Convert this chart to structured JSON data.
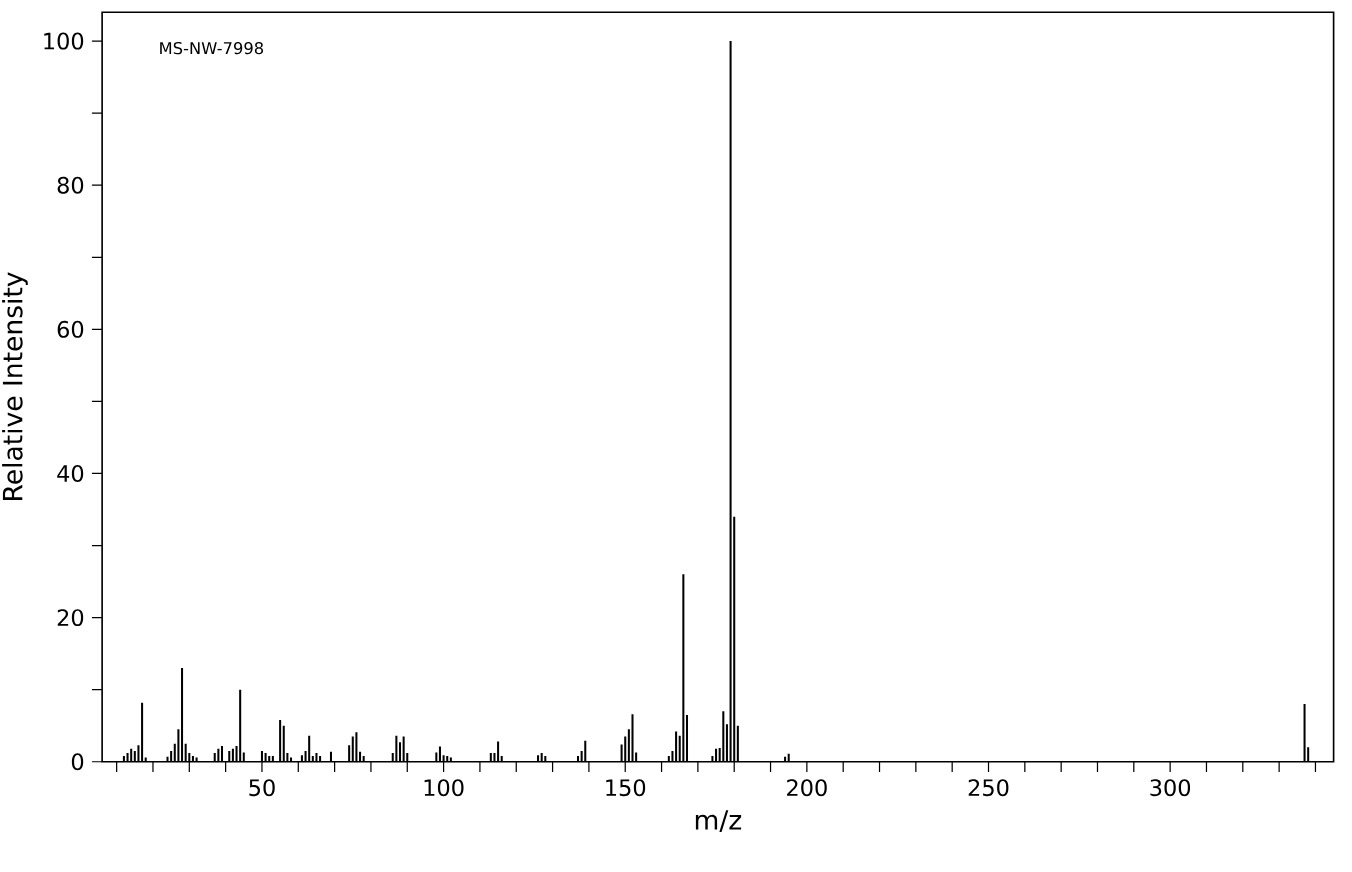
{
  "chart_data": {
    "type": "bar",
    "xlabel": "m/z",
    "ylabel": "Relative Intensity",
    "annotations": [
      "MS-NW-7998"
    ],
    "color": "#000000",
    "x": [
      12,
      13,
      14,
      15,
      16,
      17,
      18,
      24,
      25,
      26,
      27,
      28,
      29,
      30,
      31,
      32,
      37,
      38,
      39,
      41,
      42,
      43,
      44,
      45,
      50,
      51,
      52,
      53,
      55,
      56,
      57,
      58,
      61,
      62,
      63,
      64,
      65,
      66,
      69,
      74,
      75,
      76,
      77,
      78,
      86,
      87,
      88,
      89,
      90,
      98,
      99,
      100,
      101,
      102,
      113,
      114,
      115,
      116,
      126,
      127,
      128,
      137,
      138,
      139,
      149,
      150,
      151,
      152,
      153,
      162,
      163,
      164,
      165,
      166,
      167,
      174,
      175,
      176,
      177,
      178,
      179,
      180,
      181,
      194,
      195,
      337,
      338
    ],
    "values": [
      0.8,
      1.2,
      1.8,
      1.5,
      2.3,
      8.2,
      0.6,
      0.7,
      1.5,
      2.5,
      4.5,
      13,
      2.5,
      1.2,
      0.8,
      0.6,
      1.2,
      1.8,
      2.2,
      1.5,
      1.8,
      2.2,
      10,
      1.3,
      1.5,
      1.2,
      0.8,
      0.8,
      5.8,
      5,
      1.2,
      0.6,
      0.9,
      1.5,
      3.6,
      0.8,
      1.2,
      0.8,
      1.4,
      2.3,
      3.5,
      4.1,
      1.4,
      0.8,
      1.2,
      3.6,
      2.7,
      3.5,
      1.2,
      1.3,
      2.1,
      0.9,
      0.8,
      0.6,
      1.2,
      1.2,
      2.8,
      0.8,
      0.9,
      1.2,
      0.8,
      0.8,
      1.5,
      2.9,
      2.4,
      3.5,
      4.5,
      6.6,
      1.3,
      0.8,
      1.5,
      4.2,
      3.6,
      26,
      6.5,
      0.8,
      1.8,
      1.9,
      7,
      5.2,
      100,
      34,
      5,
      0.7,
      1.1,
      8,
      2
    ],
    "xlim": [
      6,
      345
    ],
    "ylim": [
      0,
      104
    ],
    "xticks": [
      50,
      100,
      150,
      200,
      250,
      300,
      {
        "value": 10,
        "label": null
      },
      {
        "value": 20,
        "label": null
      },
      {
        "value": 30,
        "label": null
      },
      {
        "value": 40,
        "label": null
      },
      {
        "value": 60,
        "label": null
      },
      {
        "value": 70,
        "label": null
      },
      {
        "value": 80,
        "label": null
      },
      {
        "value": 90,
        "label": null
      },
      {
        "value": 110,
        "label": null
      },
      {
        "value": 120,
        "label": null
      },
      {
        "value": 130,
        "label": null
      },
      {
        "value": 140,
        "label": null
      },
      {
        "value": 160,
        "label": null
      },
      {
        "value": 170,
        "label": null
      },
      {
        "value": 180,
        "label": null
      },
      {
        "value": 190,
        "label": null
      },
      {
        "value": 210,
        "label": null
      },
      {
        "value": 220,
        "label": null
      },
      {
        "value": 230,
        "label": null
      },
      {
        "value": 240,
        "label": null
      },
      {
        "value": 260,
        "label": null
      },
      {
        "value": 270,
        "label": null
      },
      {
        "value": 280,
        "label": null
      },
      {
        "value": 290,
        "label": null
      },
      {
        "value": 310,
        "label": null
      },
      {
        "value": 320,
        "label": null
      },
      {
        "value": 330,
        "label": null
      },
      {
        "value": 340,
        "label": null
      }
    ],
    "yticks": [
      0,
      20,
      40,
      60,
      80,
      100,
      {
        "value": 10,
        "label": null
      },
      {
        "value": 30,
        "label": null
      },
      {
        "value": 50,
        "label": null
      },
      {
        "value": 70,
        "label": null
      },
      {
        "value": 90,
        "label": null
      }
    ]
  }
}
